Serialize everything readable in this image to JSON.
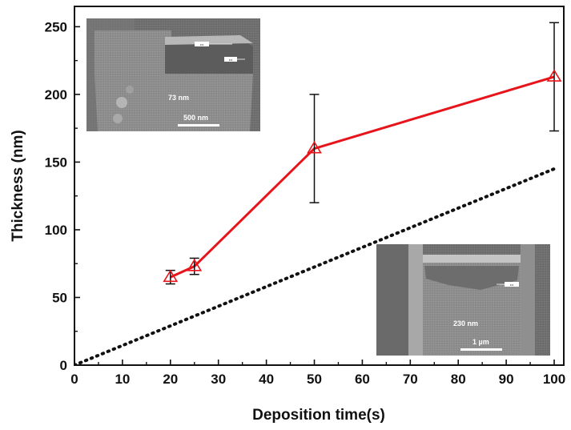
{
  "chart_data": {
    "type": "line",
    "xlabel": "Deposition time(s)",
    "ylabel": "Thickness (nm)",
    "xlim": [
      0,
      102
    ],
    "ylim": [
      0,
      265
    ],
    "x_ticks": [
      0,
      10,
      20,
      30,
      40,
      50,
      60,
      70,
      80,
      90,
      100
    ],
    "y_ticks": [
      0,
      50,
      100,
      150,
      200,
      250
    ],
    "grid": false,
    "series": [
      {
        "style": "solid",
        "color": "#e8141b",
        "marker": "open-triangle",
        "x": [
          20,
          25,
          50,
          100
        ],
        "y": [
          65,
          73,
          160,
          213
        ],
        "error": [
          5,
          6,
          40,
          40
        ]
      },
      {
        "style": "dotted",
        "color": "#111111",
        "x": [
          0,
          100
        ],
        "y": [
          0,
          145
        ]
      }
    ],
    "insets": [
      {
        "position": "top-left",
        "thickness_label": "73 nm",
        "scale_bar_label": "500 nm"
      },
      {
        "position": "bottom-right",
        "thickness_label": "230 nm",
        "scale_bar_label": "1 µm"
      }
    ]
  }
}
